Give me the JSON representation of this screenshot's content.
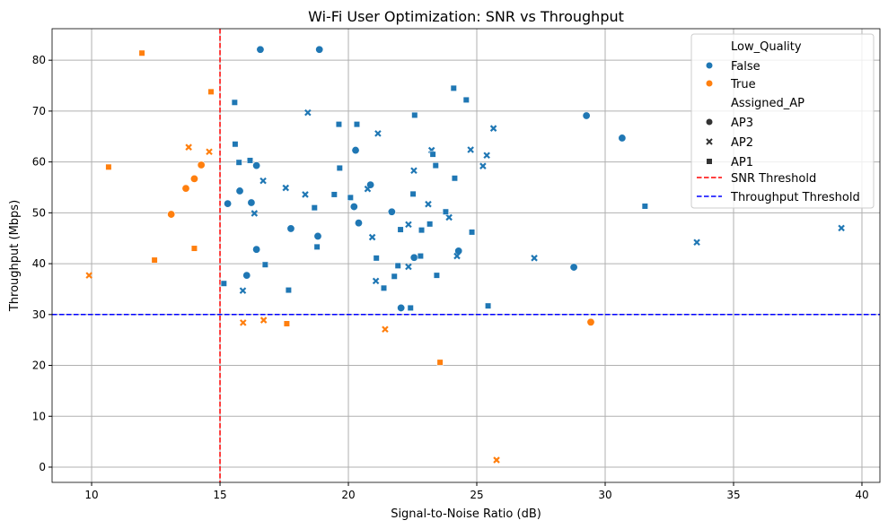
{
  "chart_data": {
    "type": "scatter",
    "title": "Wi-Fi User Optimization: SNR vs Throughput",
    "xlabel": "Signal-to-Noise Ratio (dB)",
    "ylabel": "Throughput (Mbps)",
    "xlim": [
      8.46,
      40.7
    ],
    "ylim": [
      -3.0,
      86.2
    ],
    "xticks": [
      10,
      15,
      20,
      25,
      30,
      35,
      40
    ],
    "yticks": [
      0,
      10,
      20,
      30,
      40,
      50,
      60,
      70,
      80
    ],
    "grid": true,
    "legend_placement": "top-right",
    "colors": {
      "False": "#1f77b4",
      "True": "#ff7f0e",
      "snr_threshold": "#ff0000",
      "throughput_threshold": "#0000ff"
    },
    "thresholds": {
      "snr": 15,
      "throughput": 30
    },
    "legend": {
      "hue_title": "Low_Quality",
      "hue_entries": [
        "False",
        "True"
      ],
      "style_title": "Assigned_AP",
      "style_entries": [
        "AP3",
        "AP2",
        "AP1"
      ],
      "line_entries": [
        "SNR Threshold",
        "Throughput Threshold"
      ]
    },
    "markers": {
      "AP3": "circle",
      "AP2": "x",
      "AP1": "square"
    },
    "series": [
      {
        "low_quality": "True",
        "ap": "AP1",
        "points": [
          [
            11.96,
            81.4
          ],
          [
            14.65,
            73.8
          ],
          [
            10.66,
            59.0
          ],
          [
            14.0,
            43.0
          ],
          [
            12.45,
            40.7
          ],
          [
            17.6,
            28.2
          ],
          [
            23.57,
            20.6
          ]
        ]
      },
      {
        "low_quality": "True",
        "ap": "AP2",
        "points": [
          [
            13.78,
            62.9
          ],
          [
            14.58,
            62.0
          ],
          [
            9.9,
            37.7
          ],
          [
            15.9,
            28.4
          ],
          [
            16.7,
            28.9
          ],
          [
            21.43,
            27.1
          ],
          [
            25.77,
            1.4
          ]
        ]
      },
      {
        "low_quality": "True",
        "ap": "AP3",
        "points": [
          [
            14.27,
            59.4
          ],
          [
            14.0,
            56.7
          ],
          [
            13.67,
            54.8
          ],
          [
            13.1,
            49.7
          ],
          [
            29.44,
            28.5
          ]
        ]
      },
      {
        "low_quality": "False",
        "ap": "AP3",
        "points": [
          [
            16.57,
            82.1
          ],
          [
            18.87,
            82.1
          ],
          [
            16.42,
            59.3
          ],
          [
            15.77,
            54.3
          ],
          [
            15.3,
            51.8
          ],
          [
            16.22,
            52.0
          ],
          [
            16.42,
            42.8
          ],
          [
            16.04,
            37.7
          ],
          [
            20.28,
            62.3
          ],
          [
            20.86,
            55.5
          ],
          [
            20.22,
            51.2
          ],
          [
            21.69,
            50.2
          ],
          [
            20.4,
            48.0
          ],
          [
            17.76,
            46.9
          ],
          [
            18.81,
            45.4
          ],
          [
            24.29,
            42.5
          ],
          [
            22.56,
            41.2
          ],
          [
            22.05,
            31.3
          ],
          [
            29.27,
            69.1
          ],
          [
            30.66,
            64.7
          ],
          [
            28.78,
            39.3
          ]
        ]
      },
      {
        "low_quality": "False",
        "ap": "AP2",
        "points": [
          [
            16.68,
            56.3
          ],
          [
            16.34,
            49.9
          ],
          [
            15.89,
            34.7
          ],
          [
            18.42,
            69.7
          ],
          [
            21.15,
            65.6
          ],
          [
            23.24,
            62.3
          ],
          [
            24.76,
            62.4
          ],
          [
            25.65,
            66.6
          ],
          [
            25.39,
            61.3
          ],
          [
            25.24,
            59.2
          ],
          [
            22.55,
            58.3
          ],
          [
            17.56,
            54.9
          ],
          [
            18.32,
            53.6
          ],
          [
            20.75,
            54.7
          ],
          [
            23.11,
            51.7
          ],
          [
            23.92,
            49.1
          ],
          [
            22.34,
            47.7
          ],
          [
            20.93,
            45.2
          ],
          [
            24.23,
            41.5
          ],
          [
            22.34,
            39.4
          ],
          [
            21.07,
            36.6
          ],
          [
            27.24,
            41.1
          ],
          [
            33.57,
            44.2
          ],
          [
            39.2,
            47.0
          ]
        ]
      },
      {
        "low_quality": "False",
        "ap": "AP1",
        "points": [
          [
            15.57,
            71.7
          ],
          [
            15.59,
            63.5
          ],
          [
            15.74,
            59.9
          ],
          [
            16.17,
            60.3
          ],
          [
            16.76,
            39.8
          ],
          [
            15.15,
            36.1
          ],
          [
            24.1,
            74.5
          ],
          [
            24.59,
            72.2
          ],
          [
            22.58,
            69.2
          ],
          [
            19.63,
            67.4
          ],
          [
            20.33,
            67.4
          ],
          [
            23.29,
            61.5
          ],
          [
            23.4,
            59.3
          ],
          [
            19.66,
            58.8
          ],
          [
            24.14,
            56.8
          ],
          [
            22.52,
            53.7
          ],
          [
            19.45,
            53.6
          ],
          [
            20.08,
            53.0
          ],
          [
            18.68,
            51.0
          ],
          [
            23.79,
            50.2
          ],
          [
            23.17,
            47.8
          ],
          [
            22.03,
            46.7
          ],
          [
            22.85,
            46.6
          ],
          [
            24.81,
            46.2
          ],
          [
            18.78,
            43.3
          ],
          [
            22.81,
            41.5
          ],
          [
            21.09,
            41.1
          ],
          [
            21.93,
            39.6
          ],
          [
            21.79,
            37.5
          ],
          [
            23.44,
            37.7
          ],
          [
            17.67,
            34.8
          ],
          [
            21.38,
            35.2
          ],
          [
            22.42,
            31.3
          ],
          [
            25.44,
            31.7
          ],
          [
            31.55,
            51.3
          ]
        ]
      }
    ]
  }
}
